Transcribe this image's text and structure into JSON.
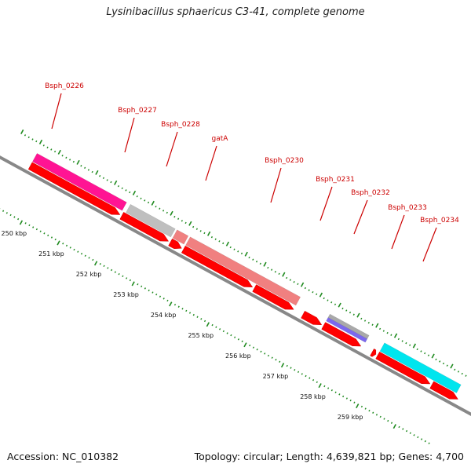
{
  "title": "Lysinibacillus sphaericus C3-41, complete genome",
  "footer": {
    "accession": "Accession: NC_010382",
    "summary": "Topology: circular; Length: 4,639,821 bp; Genes: 4,700"
  },
  "colors": {
    "backbone": "#888888",
    "cds": "#ff0000",
    "tick": "#1f8a1f",
    "label": "#cc0000"
  },
  "genes": [
    {
      "name": "Bsph_0226",
      "start": 249.55,
      "end": 251.95,
      "color": "#ff1493"
    },
    {
      "name": "Bsph_0227",
      "start": 252.05,
      "end": 253.25,
      "color": "#bfbfbf"
    },
    {
      "name": "Bsph_0228",
      "start": 253.3,
      "end": 253.6,
      "color": "#f08080"
    },
    {
      "name": "gatA",
      "start": 253.65,
      "end": 256.6,
      "color": "#f08080"
    },
    {
      "name": "Bsph_0230",
      "start": 254.75,
      "end": 256.6,
      "color": "#f08080"
    },
    {
      "name": "Bsph_0231",
      "start": 257.4,
      "end": 258.45,
      "color": "#a9a9a9"
    },
    {
      "name": "Bsph_0232",
      "start": 257.4,
      "end": 258.45,
      "color": "#7b68ee"
    },
    {
      "name": "Bsph_0233",
      "start": 258.85,
      "end": 260.9,
      "color": "#00e5ee"
    },
    {
      "name": "Bsph_0234",
      "start": 258.85,
      "end": 260.9,
      "color": "#00e5ee"
    }
  ],
  "cds": [
    {
      "start": 249.55,
      "end": 251.95
    },
    {
      "start": 252.0,
      "end": 253.25
    },
    {
      "start": 253.3,
      "end": 253.6
    },
    {
      "start": 253.65,
      "end": 255.5
    },
    {
      "start": 255.55,
      "end": 256.6
    },
    {
      "start": 256.85,
      "end": 257.35
    },
    {
      "start": 257.4,
      "end": 258.4
    },
    {
      "start": 258.7,
      "end": 258.8
    },
    {
      "start": 258.85,
      "end": 260.25
    },
    {
      "start": 260.3,
      "end": 261.0
    }
  ],
  "kbp_ticks": [
    {
      "value": 250,
      "label": "250 kbp"
    },
    {
      "value": 251,
      "label": "251 kbp"
    },
    {
      "value": 252,
      "label": "252 kbp"
    },
    {
      "value": 253,
      "label": "253 kbp"
    },
    {
      "value": 254,
      "label": "254 kbp"
    },
    {
      "value": 255,
      "label": "255 kbp"
    },
    {
      "value": 256,
      "label": "256 kbp"
    },
    {
      "value": 257,
      "label": "257 kbp"
    },
    {
      "value": 258,
      "label": "258 kbp"
    },
    {
      "value": 259,
      "label": "259 kbp"
    }
  ]
}
